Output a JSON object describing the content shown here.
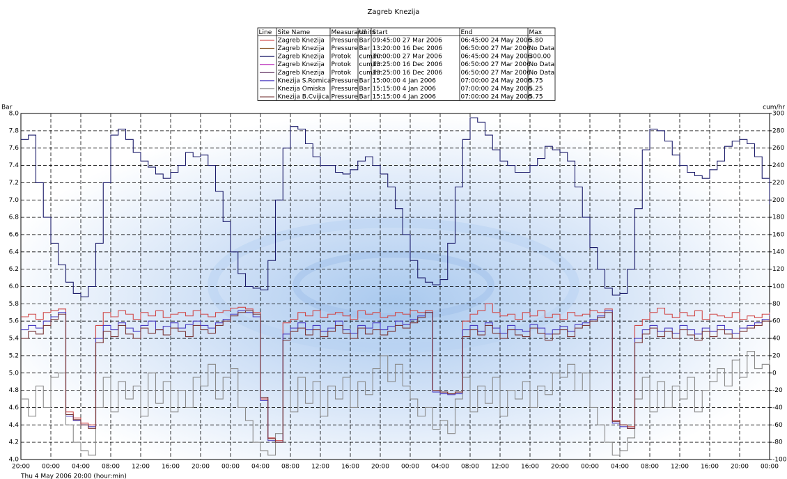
{
  "chart_data": {
    "type": "line",
    "title": "Zagreb Knezija",
    "y_label": "Bar",
    "y2_label": "cum/hr",
    "x_label": "Thu 4 May 2006 20:00 (hour:min)",
    "grid": true,
    "xlim": [
      0,
      100
    ],
    "xticks": [
      {
        "value": 0,
        "label": "20:00"
      },
      {
        "value": 4,
        "label": "00:00"
      },
      {
        "value": 8,
        "label": "04:00"
      },
      {
        "value": 12,
        "label": "08:00"
      },
      {
        "value": 16,
        "label": "12:00"
      },
      {
        "value": 20,
        "label": "16:00"
      },
      {
        "value": 24,
        "label": "20:00"
      },
      {
        "value": 28,
        "label": "00:00"
      },
      {
        "value": 32,
        "label": "04:00"
      },
      {
        "value": 36,
        "label": "08:00"
      },
      {
        "value": 40,
        "label": "12:00"
      },
      {
        "value": 44,
        "label": "16:00"
      },
      {
        "value": 48,
        "label": "20:00"
      },
      {
        "value": 52,
        "label": "00:00"
      },
      {
        "value": 56,
        "label": "04:00"
      },
      {
        "value": 60,
        "label": "08:00"
      },
      {
        "value": 64,
        "label": "12:00"
      },
      {
        "value": 68,
        "label": "16:00"
      },
      {
        "value": 72,
        "label": "20:00"
      },
      {
        "value": 76,
        "label": "00:00"
      },
      {
        "value": 80,
        "label": "04:00"
      },
      {
        "value": 84,
        "label": "08:00"
      },
      {
        "value": 88,
        "label": "12:00"
      },
      {
        "value": 92,
        "label": "16:00"
      },
      {
        "value": 96,
        "label": "20:00"
      },
      {
        "value": 100,
        "label": "00:00"
      }
    ],
    "ylim": [
      4.0,
      8.0
    ],
    "yticks": [
      {
        "value": 4,
        "label": "4.0"
      },
      4.2,
      4.4,
      4.6,
      4.8,
      {
        "value": 5,
        "label": "5.0"
      },
      5.2,
      5.4,
      5.6,
      5.8,
      {
        "value": 6,
        "label": "6.0"
      },
      6.2,
      6.4,
      6.6,
      6.8,
      {
        "value": 7,
        "label": "7.0"
      },
      7.2,
      7.4,
      7.6,
      7.8,
      {
        "value": 8,
        "label": "8.0"
      }
    ],
    "y2lim": [
      -100,
      300
    ],
    "y2ticks": [
      -100,
      -80,
      -60,
      -40,
      -20,
      0,
      20,
      40,
      60,
      80,
      100,
      120,
      140,
      160,
      180,
      200,
      220,
      240,
      260,
      280,
      300
    ],
    "legend_header": [
      "Line",
      "Site Name",
      "Measurand",
      "Units",
      "Start",
      "End",
      "Max"
    ],
    "x": [
      0,
      1,
      2,
      3,
      4,
      5,
      6,
      7,
      8,
      9,
      10,
      11,
      12,
      13,
      14,
      15,
      16,
      17,
      18,
      19,
      20,
      21,
      22,
      23,
      24,
      25,
      26,
      27,
      28,
      29,
      30,
      31,
      32,
      33,
      34,
      35,
      36,
      37,
      38,
      39,
      40,
      41,
      42,
      43,
      44,
      45,
      46,
      47,
      48,
      49,
      50,
      51,
      52,
      53,
      54,
      55,
      56,
      57,
      58,
      59,
      60,
      61,
      62,
      63,
      64,
      65,
      66,
      67,
      68,
      69,
      70,
      71,
      72,
      73,
      74,
      75,
      76,
      77,
      78,
      79,
      80,
      81,
      82,
      83,
      84,
      85,
      86,
      87,
      88,
      89,
      90,
      91,
      92,
      93,
      94,
      95,
      96,
      97,
      98,
      99,
      100
    ],
    "series": [
      {
        "site": "Zagreb Knezija",
        "measurand": "Pressure",
        "units": "Bar",
        "start": "09:45:00 27 Mar 2006",
        "end": "06:45:00 24 May 2006",
        "max": "5.80",
        "color": "#d04848",
        "values": [
          5.65,
          5.68,
          5.62,
          5.7,
          5.72,
          5.74,
          4.55,
          4.48,
          4.42,
          4.4,
          5.55,
          5.7,
          5.65,
          5.72,
          5.68,
          5.62,
          5.7,
          5.66,
          5.72,
          5.64,
          5.68,
          5.7,
          5.66,
          5.72,
          5.68,
          5.65,
          5.7,
          5.72,
          5.75,
          5.76,
          5.74,
          5.7,
          4.7,
          4.25,
          4.22,
          5.58,
          5.62,
          5.7,
          5.66,
          5.72,
          5.64,
          5.68,
          5.7,
          5.66,
          5.62,
          5.72,
          5.68,
          5.7,
          5.64,
          5.66,
          5.7,
          5.68,
          5.72,
          5.7,
          5.72,
          4.8,
          4.78,
          4.76,
          4.78,
          5.6,
          5.68,
          5.72,
          5.8,
          5.7,
          5.66,
          5.68,
          5.62,
          5.7,
          5.66,
          5.72,
          5.64,
          5.68,
          5.62,
          5.7,
          5.66,
          5.68,
          5.72,
          5.7,
          5.74,
          4.45,
          4.4,
          4.38,
          5.55,
          5.62,
          5.7,
          5.75,
          5.68,
          5.64,
          5.7,
          5.66,
          5.72,
          5.62,
          5.68,
          5.66,
          5.64,
          5.7,
          5.62,
          5.66,
          5.64,
          5.68,
          5.7
        ]
      },
      {
        "site": "Zagreb Knezija",
        "measurand": "Pressure",
        "units": "Bar",
        "start": "13:20:00 16 Dec 2006",
        "end": "06:50:00 27 Mar 2006",
        "max": "No Data",
        "color": "#8b5a2b"
      },
      {
        "site": "Zagreb Knezija",
        "measurand": "Protok",
        "units": "cum/hr",
        "start": "10:00:00 27 Mar 2006",
        "end": "06:45:00 24 May 2006",
        "max": "300.00",
        "color": "#1c1c6a",
        "axis": "y2",
        "values": [
          270,
          275,
          220,
          180,
          150,
          125,
          105,
          92,
          88,
          100,
          150,
          220,
          275,
          282,
          270,
          255,
          245,
          238,
          230,
          225,
          232,
          240,
          255,
          250,
          252,
          240,
          210,
          175,
          140,
          115,
          100,
          98,
          96,
          130,
          200,
          260,
          285,
          282,
          265,
          250,
          240,
          240,
          232,
          230,
          235,
          245,
          250,
          240,
          230,
          215,
          190,
          160,
          130,
          110,
          105,
          102,
          108,
          150,
          215,
          270,
          295,
          290,
          275,
          258,
          245,
          240,
          232,
          232,
          240,
          248,
          262,
          258,
          255,
          245,
          215,
          180,
          145,
          120,
          98,
          90,
          92,
          120,
          190,
          258,
          282,
          280,
          268,
          252,
          240,
          232,
          228,
          225,
          235,
          245,
          262,
          268,
          270,
          265,
          250,
          225,
          195
        ]
      },
      {
        "site": "Zagreb Knezija",
        "measurand": "Protok",
        "units": "cum/hr",
        "start": "13:25:00 16 Dec 2006",
        "end": "06:50:00 27 Mar 2006",
        "max": "No Data",
        "color": "#c040c0"
      },
      {
        "site": "Zagreb Knezija",
        "measurand": "Protok",
        "units": "cum/hr",
        "start": "13:25:00 16 Dec 2006",
        "end": "06:50:00 27 Mar 2006",
        "max": "No Data",
        "color": "#603060"
      },
      {
        "site": "Knezija S.Romica",
        "measurand": "Pressure",
        "units": "Bar",
        "start": "15:00:00  4 Jan 2006",
        "end": "07:00:00 24 May 2006",
        "max": "5.75",
        "color": "#4a3cc0",
        "values": [
          5.5,
          5.55,
          5.52,
          5.6,
          5.65,
          5.7,
          4.5,
          4.45,
          4.4,
          4.38,
          5.4,
          5.55,
          5.5,
          5.58,
          5.52,
          5.48,
          5.55,
          5.6,
          5.5,
          5.54,
          5.58,
          5.52,
          5.56,
          5.6,
          5.55,
          5.52,
          5.58,
          5.62,
          5.68,
          5.72,
          5.7,
          5.65,
          4.68,
          4.22,
          4.2,
          5.45,
          5.52,
          5.58,
          5.5,
          5.55,
          5.48,
          5.52,
          5.6,
          5.5,
          5.46,
          5.55,
          5.52,
          5.58,
          5.5,
          5.54,
          5.6,
          5.56,
          5.62,
          5.66,
          5.7,
          4.78,
          4.76,
          4.75,
          4.76,
          5.5,
          5.55,
          5.48,
          5.58,
          5.52,
          5.46,
          5.55,
          5.5,
          5.48,
          5.56,
          5.52,
          5.45,
          5.5,
          5.54,
          5.48,
          5.56,
          5.58,
          5.62,
          5.66,
          5.72,
          4.42,
          4.38,
          4.36,
          5.4,
          5.5,
          5.55,
          5.48,
          5.52,
          5.46,
          5.55,
          5.5,
          5.45,
          5.52,
          5.48,
          5.55,
          5.5,
          5.46,
          5.52,
          5.55,
          5.58,
          5.62,
          5.68
        ]
      },
      {
        "site": "Knezija Omiska",
        "measurand": "Pressure",
        "units": "Bar",
        "start": "15:15:00  4 Jan 2006",
        "end": "07:00:00 24 May 2006",
        "max": "5.25",
        "color": "#8a8a8a",
        "values": [
          4.7,
          4.5,
          4.85,
          4.6,
          4.95,
          5.0,
          4.4,
          4.2,
          4.1,
          4.05,
          4.6,
          4.95,
          4.55,
          4.9,
          4.7,
          4.85,
          4.5,
          5.0,
          4.65,
          4.9,
          4.55,
          4.8,
          4.6,
          4.95,
          4.85,
          5.1,
          4.7,
          4.95,
          5.05,
          4.6,
          4.45,
          4.2,
          4.1,
          4.05,
          4.3,
          4.8,
          4.55,
          4.95,
          4.65,
          4.9,
          4.5,
          4.85,
          4.7,
          4.95,
          4.6,
          4.9,
          4.75,
          5.05,
          5.2,
          4.9,
          5.1,
          4.85,
          4.7,
          4.5,
          4.6,
          4.35,
          4.45,
          4.3,
          4.7,
          4.95,
          4.55,
          4.85,
          4.65,
          4.95,
          4.5,
          4.8,
          4.7,
          4.9,
          4.6,
          4.85,
          4.75,
          5.0,
          4.95,
          5.1,
          4.8,
          5.0,
          4.6,
          4.4,
          4.2,
          4.05,
          4.1,
          4.25,
          4.7,
          4.95,
          4.55,
          4.9,
          4.6,
          4.85,
          4.7,
          4.95,
          4.55,
          4.8,
          4.9,
          5.05,
          4.85,
          5.15,
          4.95,
          5.25,
          5.05,
          5.1,
          5.15
        ]
      },
      {
        "site": "Knezija B.Cvijica",
        "measurand": "Pressure",
        "units": "Bar",
        "start": "15:15:00  4 Jan 2006",
        "end": "07:00:00 24 May 2006",
        "max": "5.75",
        "color": "#7a3838",
        "values": [
          5.4,
          5.48,
          5.45,
          5.55,
          5.62,
          5.68,
          4.52,
          4.46,
          4.4,
          4.36,
          5.35,
          5.48,
          5.42,
          5.55,
          5.45,
          5.4,
          5.52,
          5.46,
          5.5,
          5.44,
          5.52,
          5.48,
          5.42,
          5.55,
          5.5,
          5.46,
          5.55,
          5.6,
          5.66,
          5.7,
          5.72,
          5.68,
          4.72,
          4.24,
          4.2,
          5.38,
          5.48,
          5.52,
          5.44,
          5.5,
          5.42,
          5.48,
          5.55,
          5.46,
          5.4,
          5.52,
          5.45,
          5.5,
          5.44,
          5.48,
          5.55,
          5.52,
          5.58,
          5.64,
          5.7,
          4.8,
          4.78,
          4.76,
          4.78,
          5.42,
          5.5,
          5.44,
          5.55,
          5.46,
          5.4,
          5.5,
          5.44,
          5.42,
          5.52,
          5.46,
          5.38,
          5.45,
          5.5,
          5.42,
          5.52,
          5.55,
          5.6,
          5.64,
          5.7,
          4.44,
          4.4,
          4.36,
          5.35,
          5.45,
          5.52,
          5.42,
          5.48,
          5.4,
          5.5,
          5.44,
          5.38,
          5.48,
          5.42,
          5.5,
          5.45,
          5.4,
          5.48,
          5.52,
          5.55,
          5.6,
          5.66
        ]
      }
    ]
  }
}
